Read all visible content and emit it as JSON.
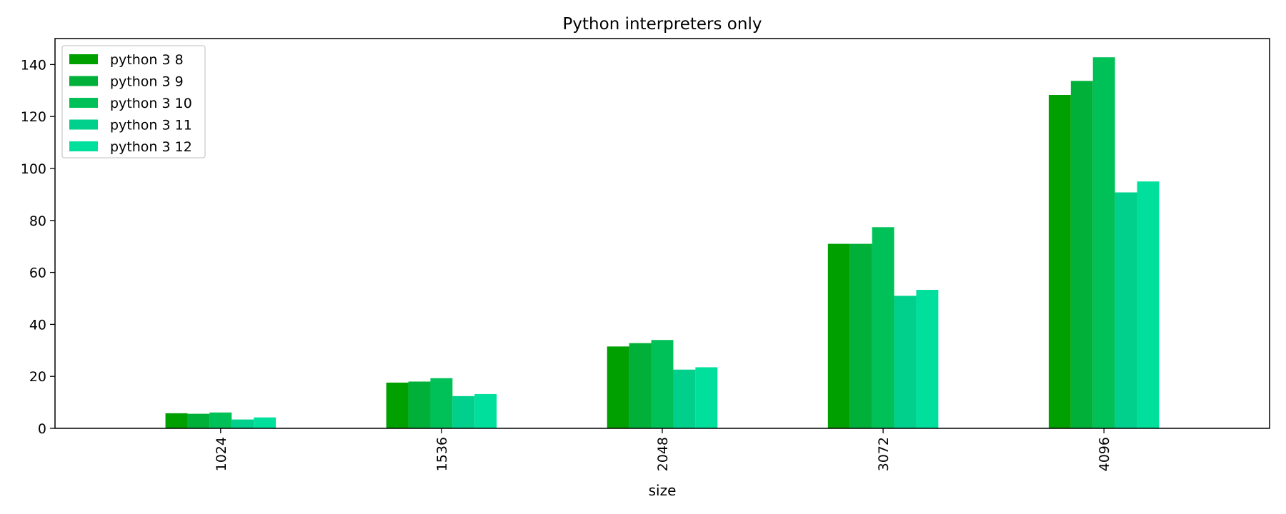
{
  "chart_data": {
    "type": "bar",
    "title": "Python interpreters only",
    "xlabel": "size",
    "ylabel": "",
    "categories": [
      "1024",
      "1536",
      "2048",
      "3072",
      "4096"
    ],
    "series": [
      {
        "name": "python 3 8",
        "color": "#00a000",
        "values": [
          5.8,
          17.6,
          31.5,
          71.0,
          128.3
        ]
      },
      {
        "name": "python 3 9",
        "color": "#00b038",
        "values": [
          5.6,
          18.0,
          32.8,
          71.0,
          133.7
        ]
      },
      {
        "name": "python 3 10",
        "color": "#00c058",
        "values": [
          6.1,
          19.3,
          34.0,
          77.4,
          142.8
        ]
      },
      {
        "name": "python 3 11",
        "color": "#00d08c",
        "values": [
          3.4,
          12.4,
          22.6,
          51.0,
          90.8
        ]
      },
      {
        "name": "python 3 12",
        "color": "#00e09c",
        "values": [
          4.2,
          13.2,
          23.5,
          53.3,
          95.0
        ]
      }
    ],
    "ylim": [
      0,
      150
    ],
    "yticks": [
      0,
      20,
      40,
      60,
      80,
      100,
      120,
      140
    ],
    "grid": false,
    "legend_position": "upper-left"
  }
}
